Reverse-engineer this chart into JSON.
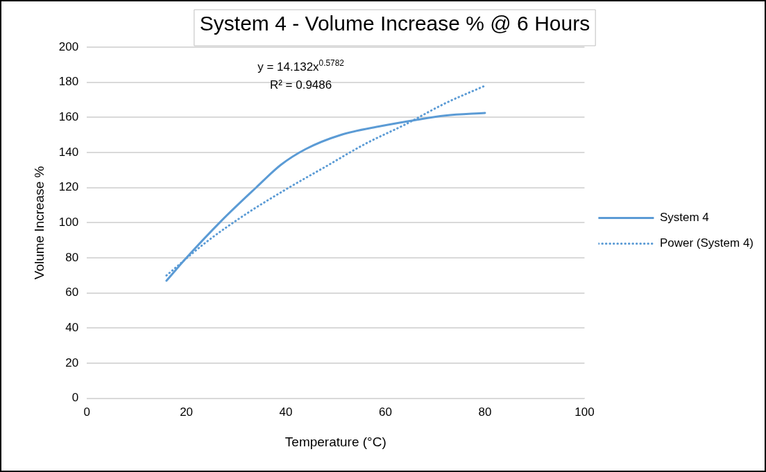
{
  "chart_data": {
    "type": "line",
    "title": "System 4 - Volume Increase % @ 6 Hours",
    "xlabel": "Temperature (°C)",
    "ylabel": "Volume Increase %",
    "xlim": [
      0,
      100
    ],
    "xticks": [
      0,
      20,
      40,
      60,
      80,
      100
    ],
    "ylim": [
      0,
      200
    ],
    "yticks": [
      0,
      20,
      40,
      60,
      80,
      100,
      120,
      140,
      160,
      180,
      200
    ],
    "grid": "y",
    "legend": "right",
    "marker": "none",
    "annotations": [
      "y = 14.132x$^{0.5782}$",
      "R² = 0.9486"
    ],
    "series": [
      {
        "name": "System 4",
        "color": "#5b9bd5",
        "line_style": "solid",
        "x": [
          16,
          20,
          27,
          34,
          39,
          44,
          51,
          59,
          66,
          72,
          80
        ],
        "values": [
          67,
          80,
          101,
          120,
          133,
          142,
          150,
          155,
          158.5,
          161,
          162.5
        ]
      },
      {
        "name": "Power (System 4)",
        "color": "#5b9bd5",
        "line_style": "dotted",
        "x": [
          16,
          24,
          32,
          40,
          48,
          56,
          64,
          72,
          80
        ],
        "values": [
          70,
          89,
          105,
          119,
          132,
          145,
          156,
          168,
          178
        ]
      }
    ]
  }
}
